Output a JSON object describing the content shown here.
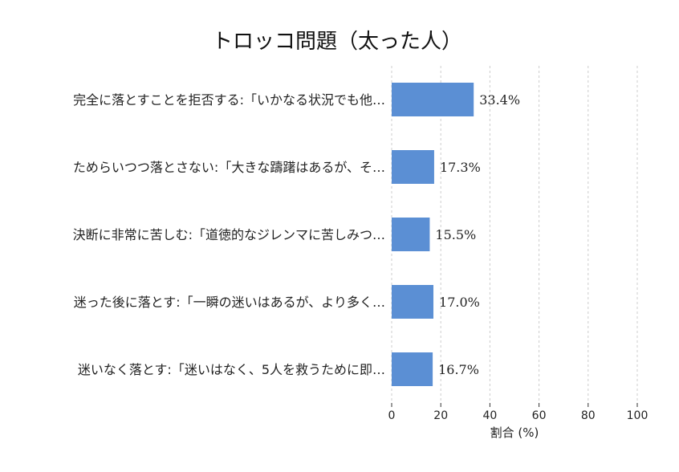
{
  "chart_data": {
    "type": "bar",
    "orientation": "horizontal",
    "title": "トロッコ問題（太った人）",
    "xlabel": "割合 (%)",
    "ylabel": "",
    "xlim": [
      0,
      100
    ],
    "xticks": [
      0,
      20,
      40,
      60,
      80,
      100
    ],
    "grid": true,
    "bar_color": "#5b8fd4",
    "categories": [
      "完全に落とすことを拒否する:「いかなる状況でも他…",
      "ためらいつつ落とさない:「大きな躊躇はあるが、そ…",
      "決断に非常に苦しむ:「道徳的なジレンマに苦しみつ…",
      "迷った後に落とす:「一瞬の迷いはあるが、より多く…",
      "迷いなく落とす:「迷いはなく、5人を救うために即…"
    ],
    "values": [
      33.4,
      17.3,
      15.5,
      17.0,
      16.7
    ],
    "value_labels": [
      "33.4%",
      "17.3%",
      "15.5%",
      "17.0%",
      "16.7%"
    ]
  }
}
